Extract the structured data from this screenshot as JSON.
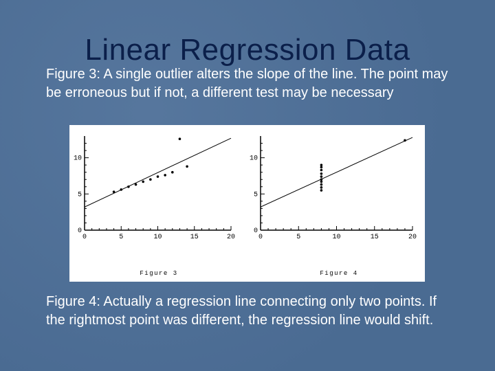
{
  "slide": {
    "title": "Linear Regression Data",
    "paragraph_top": "Figure 3:  A single outlier alters the slope of the line. The point may be erroneous but if not, a different test may be necessary",
    "paragraph_bottom": "Figure 4:  Actually a regression line connecting only two points.  If the rightmost point was different, the regression line would shift."
  },
  "chart_data": [
    {
      "type": "scatter",
      "caption": "Figure 3",
      "xlim": [
        0,
        20
      ],
      "ylim": [
        0,
        13
      ],
      "xticks": [
        0,
        5,
        10,
        15,
        20
      ],
      "yticks": [
        0,
        5,
        10
      ],
      "points": [
        [
          4,
          5.3
        ],
        [
          5,
          5.6
        ],
        [
          6,
          6
        ],
        [
          7,
          6.3
        ],
        [
          8,
          6.7
        ],
        [
          9,
          7
        ],
        [
          10,
          7.4
        ],
        [
          11,
          7.6
        ],
        [
          12,
          8
        ],
        [
          13,
          12.6
        ],
        [
          14,
          8.8
        ]
      ],
      "regression_line": {
        "from": [
          0,
          3.2
        ],
        "to": [
          20,
          12.7
        ]
      }
    },
    {
      "type": "scatter",
      "caption": "Figure 4",
      "xlim": [
        0,
        20
      ],
      "ylim": [
        0,
        13
      ],
      "xticks": [
        0,
        5,
        10,
        15,
        20
      ],
      "yticks": [
        0,
        5,
        10
      ],
      "points": [
        [
          8,
          5.5
        ],
        [
          8,
          5.9
        ],
        [
          8,
          6.3
        ],
        [
          8,
          6.7
        ],
        [
          8,
          7
        ],
        [
          8,
          7.4
        ],
        [
          8,
          7.8
        ],
        [
          8,
          8.3
        ],
        [
          8,
          8.7
        ],
        [
          8,
          9
        ],
        [
          19,
          12.4
        ]
      ],
      "regression_line": {
        "from": [
          0,
          3.2
        ],
        "to": [
          20,
          12.8
        ]
      }
    }
  ]
}
